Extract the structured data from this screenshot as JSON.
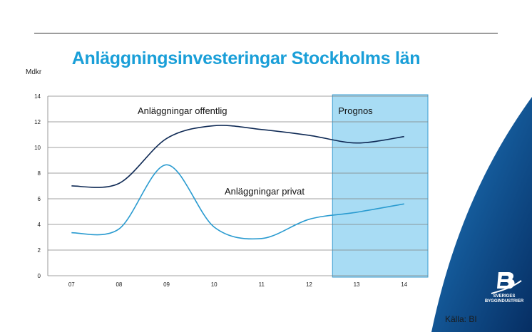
{
  "header": {
    "title": "Anläggningsinvesteringar Stockholms län"
  },
  "brand": {
    "logo_line1": "SVERIGES",
    "logo_line2": "BYGGINDUSTRIER",
    "color_dark": "#0a3f7a",
    "color_light": "#1a6fb8"
  },
  "footer": {
    "source": "Källa: BI"
  },
  "chart_data": {
    "type": "line",
    "title": "Anläggningsinvesteringar Stockholms län",
    "ylabel": "Mdkr",
    "xlabel": "",
    "categories": [
      "07",
      "08",
      "09",
      "10",
      "11",
      "12",
      "13",
      "14"
    ],
    "ylim": [
      0,
      14
    ],
    "yticks": [
      0,
      2,
      4,
      6,
      8,
      10,
      12,
      14
    ],
    "grid": true,
    "series": [
      {
        "name": "Anläggningar offentlig",
        "values": [
          7.0,
          7.2,
          10.7,
          11.7,
          11.4,
          10.95,
          10.35,
          10.85
        ],
        "color": "#0f2a55"
      },
      {
        "name": "Anläggningar privat",
        "values": [
          3.35,
          3.65,
          8.65,
          3.8,
          2.9,
          4.4,
          4.95,
          5.6
        ],
        "color": "#2a9bd0"
      }
    ],
    "highlight": {
      "label": "Prognos",
      "from": "13",
      "to": "14",
      "color": "#a8dcf4"
    }
  }
}
